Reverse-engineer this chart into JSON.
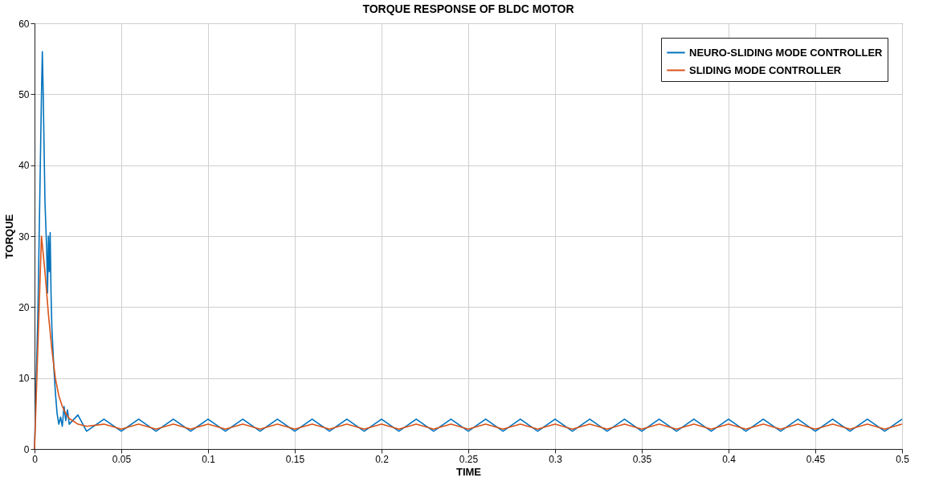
{
  "chart_data": {
    "type": "line",
    "title": "TORQUE RESPONSE OF BLDC MOTOR",
    "xlabel": "TIME",
    "ylabel": "TORQUE",
    "xlim": [
      0,
      0.5
    ],
    "xticks": [
      0,
      0.05,
      0.1,
      0.15,
      0.2,
      0.25,
      0.3,
      0.35,
      0.4,
      0.45,
      0.5
    ],
    "ylim": [
      0,
      60
    ],
    "yticks": [
      0,
      10,
      20,
      30,
      40,
      50,
      60
    ],
    "grid": true,
    "legend": "top right",
    "marker": "none",
    "line_style": "solid",
    "series": [
      {
        "name": "NEURO-SLIDING MODE CONTROLLER",
        "color": "#0072bd",
        "x": [
          0,
          0.002,
          0.004,
          0.0045,
          0.005,
          0.006,
          0.007,
          0.0075,
          0.008,
          0.0085,
          0.009,
          0.0095,
          0.01,
          0.011,
          0.012,
          0.013,
          0.014,
          0.015,
          0.016,
          0.017,
          0.018,
          0.019,
          0.02,
          0.025,
          0.03,
          0.04,
          0.05,
          0.06,
          0.07,
          0.08,
          0.09,
          0.1,
          0.11,
          0.12,
          0.13,
          0.14,
          0.15,
          0.16,
          0.17,
          0.18,
          0.19,
          0.2,
          0.21,
          0.22,
          0.23,
          0.24,
          0.25,
          0.26,
          0.27,
          0.28,
          0.29,
          0.3,
          0.31,
          0.32,
          0.33,
          0.34,
          0.35,
          0.36,
          0.37,
          0.38,
          0.39,
          0.4,
          0.41,
          0.42,
          0.43,
          0.44,
          0.45,
          0.46,
          0.47,
          0.48,
          0.49,
          0.5
        ],
        "values": [
          0,
          20,
          50,
          56,
          50,
          35,
          28,
          22,
          30,
          25,
          30.5,
          22,
          17,
          12,
          8,
          5,
          3.5,
          4.5,
          3.2,
          6,
          4,
          5.5,
          3.5,
          4.8,
          2.5,
          4.2,
          2.5,
          4.2,
          2.5,
          4.2,
          2.5,
          4.2,
          2.5,
          4.2,
          2.5,
          4.2,
          2.5,
          4.2,
          2.5,
          4.2,
          2.5,
          4.2,
          2.5,
          4.2,
          2.5,
          4.2,
          2.5,
          4.2,
          2.5,
          4.2,
          2.5,
          4.2,
          2.5,
          4.2,
          2.5,
          4.2,
          2.5,
          4.2,
          2.5,
          4.2,
          2.5,
          4.2,
          2.5,
          4.2,
          2.5,
          4.2,
          2.5,
          4.2,
          2.5,
          4.2,
          2.5,
          4.2
        ]
      },
      {
        "name": "SLIDING MODE CONTROLLER",
        "color": "#d95319",
        "x": [
          0,
          0.004,
          0.006,
          0.008,
          0.01,
          0.012,
          0.014,
          0.016,
          0.018,
          0.02,
          0.025,
          0.03,
          0.04,
          0.05,
          0.06,
          0.07,
          0.08,
          0.09,
          0.1,
          0.11,
          0.12,
          0.13,
          0.14,
          0.15,
          0.16,
          0.17,
          0.18,
          0.19,
          0.2,
          0.21,
          0.22,
          0.23,
          0.24,
          0.25,
          0.26,
          0.27,
          0.28,
          0.29,
          0.3,
          0.31,
          0.32,
          0.33,
          0.34,
          0.35,
          0.36,
          0.37,
          0.38,
          0.39,
          0.4,
          0.41,
          0.42,
          0.43,
          0.44,
          0.45,
          0.46,
          0.47,
          0.48,
          0.49,
          0.5
        ],
        "values": [
          0,
          30,
          25,
          19,
          14,
          10,
          7.5,
          6,
          5,
          4.3,
          3.5,
          3.2,
          3.5,
          2.8,
          3.5,
          2.8,
          3.5,
          2.8,
          3.5,
          2.8,
          3.5,
          2.8,
          3.5,
          2.8,
          3.5,
          2.8,
          3.5,
          2.8,
          3.5,
          2.8,
          3.5,
          2.8,
          3.5,
          2.8,
          3.5,
          2.8,
          3.5,
          2.8,
          3.5,
          2.8,
          3.5,
          2.8,
          3.5,
          2.8,
          3.5,
          2.8,
          3.5,
          2.8,
          3.5,
          2.8,
          3.5,
          2.8,
          3.5,
          2.8,
          3.5,
          2.8,
          3.5,
          2.8,
          3.5
        ]
      }
    ]
  }
}
